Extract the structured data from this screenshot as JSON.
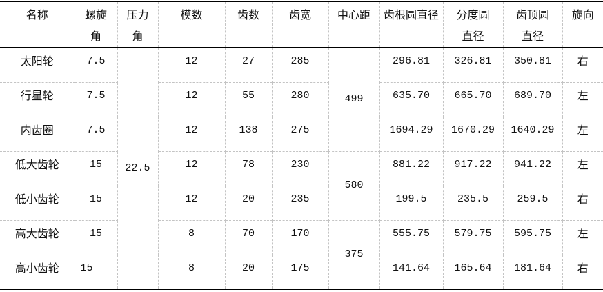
{
  "headers": [
    "名称",
    "螺旋角",
    "压力角",
    "模数",
    "齿数",
    "齿宽",
    "中心距",
    "齿根圆直径",
    "分度圆直径",
    "齿顶圆直径",
    "旋向"
  ],
  "pressure_angle": "22.5",
  "center_distances": [
    "499",
    "580",
    "375"
  ],
  "rows": [
    {
      "name": "太阳轮",
      "helix": "7.5",
      "module": "12",
      "teeth": "27",
      "width": "285",
      "root": "296.81",
      "pitch": "326.81",
      "tip": "350.81",
      "hand": "右"
    },
    {
      "name": "行星轮",
      "helix": "7.5",
      "module": "12",
      "teeth": "55",
      "width": "280",
      "root": "635.70",
      "pitch": "665.70",
      "tip": "689.70",
      "hand": "左"
    },
    {
      "name": "内齿圈",
      "helix": "7.5",
      "module": "12",
      "teeth": "138",
      "width": "275",
      "root": "1694.29",
      "pitch": "1670.29",
      "tip": "1640.29",
      "hand": "左"
    },
    {
      "name": "低大齿轮",
      "helix": "15",
      "module": "12",
      "teeth": "78",
      "width": "230",
      "root": "881.22",
      "pitch": "917.22",
      "tip": "941.22",
      "hand": "左"
    },
    {
      "name": "低小齿轮",
      "helix": "15",
      "module": "12",
      "teeth": "20",
      "width": "235",
      "root": "199.5",
      "pitch": "235.5",
      "tip": "259.5",
      "hand": "右"
    },
    {
      "name": "高大齿轮",
      "helix": "15",
      "module": "8",
      "teeth": "70",
      "width": "170",
      "root": "555.75",
      "pitch": "579.75",
      "tip": "595.75",
      "hand": "左"
    },
    {
      "name": "高小齿轮",
      "helix": "15",
      "module": "8",
      "teeth": "20",
      "width": "175",
      "root": "141.64",
      "pitch": "165.64",
      "tip": "181.64",
      "hand": "右"
    }
  ]
}
